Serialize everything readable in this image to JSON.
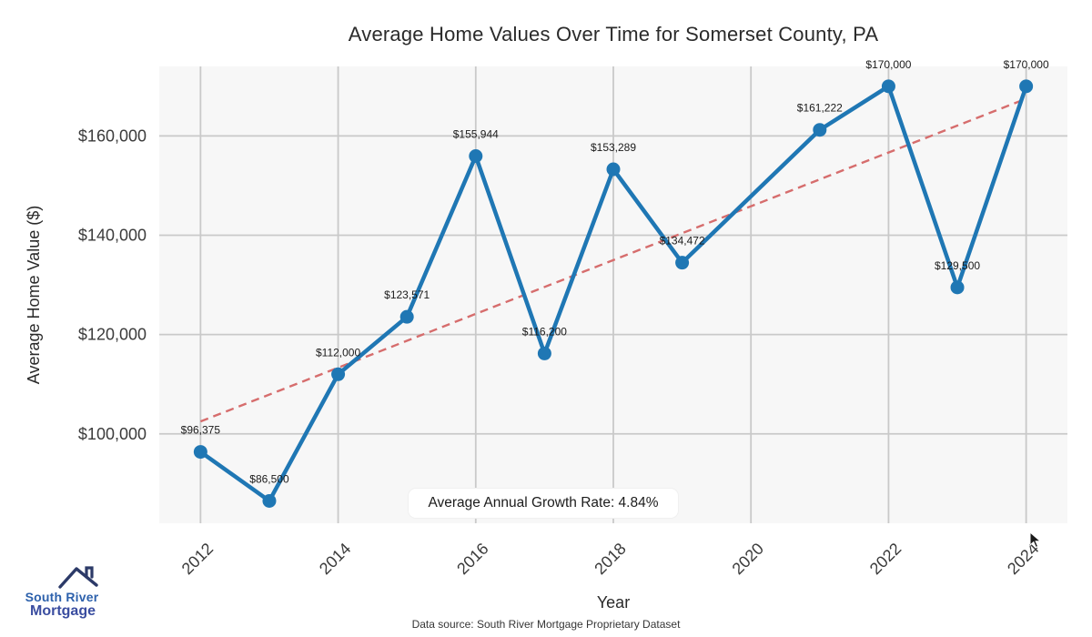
{
  "title": "Average Home Values Over Time for Somerset County, PA",
  "chart_data": {
    "type": "line",
    "title": "Average Home Values Over Time for Somerset County, PA",
    "x": [
      2012,
      2013,
      2014,
      2015,
      2016,
      2017,
      2018,
      2019,
      2021,
      2022,
      2023,
      2024
    ],
    "values": [
      96375,
      86500,
      112000,
      123571,
      155944,
      116200,
      153289,
      134472,
      161222,
      170000,
      129500,
      170000
    ],
    "point_labels": [
      "$96,375",
      "$86,500",
      "$112,000",
      "$123,571",
      "$155,944",
      "$116,200",
      "$153,289",
      "$134,472",
      "$161,222",
      "$170,000",
      "$129,500",
      "$170,000"
    ],
    "xlabel": "Year",
    "ylabel": "Average Home Value ($)",
    "x_ticks": [
      2012,
      2014,
      2016,
      2018,
      2020,
      2022,
      2024
    ],
    "y_ticks": [
      100000,
      120000,
      140000,
      160000
    ],
    "y_tick_labels": [
      "$100,000",
      "$120,000",
      "$140,000",
      "$160,000"
    ],
    "xlim": [
      2011.4,
      2024.6
    ],
    "ylim": [
      82000,
      174000
    ],
    "grid": true,
    "legend": "none",
    "trend_line": {
      "style": "dashed",
      "x": [
        2012,
        2024
      ],
      "values": [
        102500,
        167500
      ],
      "color": "#d66d6d"
    },
    "annotation": "Average Annual Growth Rate: 4.84%",
    "colors": {
      "line": "#1f77b4",
      "marker": "#1f77b4",
      "grid": "#c9c9c9",
      "plot_bg": "#f7f7f7",
      "page_bg": "#ffffff"
    }
  },
  "branding": {
    "logo_line1": "South River",
    "logo_line2": "Mortgage",
    "colors": {
      "roof": "#2c3a68",
      "line1": "#2d61ac",
      "line2": "#3a4da0"
    }
  },
  "footer": {
    "text": "Data source: South River Mortgage Proprietary Dataset"
  }
}
